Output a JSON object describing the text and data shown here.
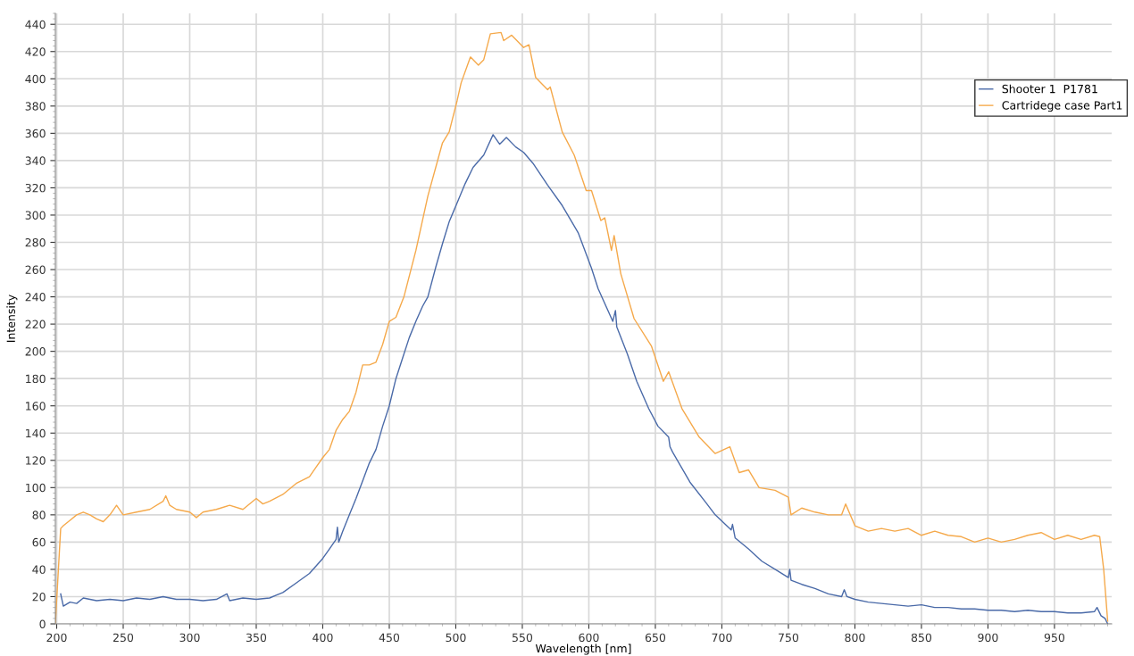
{
  "chart_data": {
    "type": "line",
    "xlabel": "Wavelength [nm]",
    "ylabel": "Intensity",
    "xlim": [
      199,
      993
    ],
    "ylim": [
      0,
      448
    ],
    "xticks": [
      200,
      250,
      300,
      350,
      400,
      450,
      500,
      550,
      600,
      650,
      700,
      750,
      800,
      850,
      900,
      950
    ],
    "yticks": [
      0,
      20,
      40,
      60,
      80,
      100,
      120,
      140,
      160,
      180,
      200,
      220,
      240,
      260,
      280,
      300,
      320,
      340,
      360,
      380,
      400,
      420,
      440
    ],
    "grid": true,
    "legend": "top right",
    "marker": "none",
    "line_style": "solid",
    "series": [
      {
        "name": "Shooter 1  P1781",
        "color": "#4a6aa8",
        "x": [
          203,
          205,
          210,
          215,
          220,
          230,
          240,
          250,
          260,
          270,
          280,
          290,
          300,
          310,
          320,
          328,
          330,
          340,
          350,
          360,
          365,
          370,
          380,
          390,
          400,
          405,
          410,
          411,
          412,
          415,
          420,
          425,
          430,
          435,
          440,
          445,
          450,
          455,
          460,
          465,
          470,
          475,
          479,
          485,
          490,
          495,
          501,
          507,
          513,
          521,
          528,
          533,
          538,
          545,
          551,
          558,
          569,
          580,
          592,
          602,
          607,
          618,
          620,
          621,
          629,
          636,
          645,
          652,
          660,
          661,
          663,
          676,
          688,
          695,
          707,
          708,
          710,
          720,
          730,
          740,
          750,
          751,
          752,
          760,
          770,
          780,
          790,
          792,
          794,
          800,
          810,
          820,
          830,
          840,
          850,
          860,
          870,
          880,
          890,
          900,
          910,
          920,
          930,
          940,
          950,
          960,
          970,
          980,
          982,
          985,
          988,
          990
        ],
        "values": [
          22,
          13,
          16,
          15,
          19,
          17,
          18,
          17,
          19,
          18,
          20,
          18,
          18,
          17,
          18,
          22,
          17,
          19,
          18,
          19,
          21,
          23,
          30,
          37,
          48,
          55,
          62,
          71,
          60,
          68,
          80,
          92,
          105,
          118,
          128,
          145,
          160,
          180,
          195,
          210,
          222,
          233,
          240,
          262,
          279,
          295,
          309,
          323,
          335,
          344,
          359,
          352,
          357,
          350,
          346,
          338,
          322,
          307,
          287,
          261,
          246,
          222,
          230,
          218,
          198,
          178,
          158,
          145,
          137,
          130,
          126,
          104,
          89,
          80,
          69,
          73,
          63,
          55,
          46,
          40,
          34,
          40,
          32,
          29,
          26,
          22,
          20,
          25,
          20,
          18,
          16,
          15,
          14,
          13,
          14,
          12,
          12,
          11,
          11,
          10,
          10,
          9,
          10,
          9,
          9,
          8,
          8,
          9,
          12,
          6,
          4,
          0
        ]
      },
      {
        "name": "Cartridege case Part1",
        "color": "#f5a94b",
        "x": [
          199,
          203,
          205,
          210,
          215,
          220,
          225,
          230,
          235,
          240,
          245,
          250,
          260,
          270,
          280,
          282,
          285,
          290,
          300,
          305,
          310,
          320,
          330,
          340,
          350,
          355,
          360,
          370,
          380,
          390,
          395,
          400,
          405,
          410,
          415,
          420,
          425,
          430,
          435,
          440,
          445,
          450,
          455,
          461,
          470,
          479,
          490,
          495,
          501,
          504,
          511,
          517,
          521,
          526,
          534,
          536,
          542,
          551,
          555,
          560,
          569,
          571,
          580,
          589,
          598,
          602,
          609,
          612,
          617,
          619,
          624,
          634,
          647,
          656,
          660,
          670,
          683,
          695,
          706,
          713,
          720,
          728,
          740,
          750,
          752,
          760,
          770,
          780,
          790,
          793,
          800,
          810,
          820,
          830,
          840,
          850,
          860,
          870,
          880,
          890,
          900,
          910,
          920,
          930,
          940,
          950,
          960,
          970,
          980,
          984,
          987,
          990
        ],
        "values": [
          0,
          70,
          72,
          76,
          80,
          82,
          80,
          77,
          75,
          80,
          87,
          80,
          82,
          84,
          90,
          94,
          87,
          84,
          82,
          78,
          82,
          84,
          87,
          84,
          92,
          88,
          90,
          95,
          103,
          108,
          115,
          122,
          128,
          142,
          150,
          156,
          170,
          190,
          190,
          192,
          205,
          222,
          225,
          240,
          274,
          314,
          353,
          361,
          384,
          397,
          416,
          410,
          414,
          433,
          434,
          428,
          432,
          423,
          425,
          401,
          392,
          394,
          361,
          344,
          318,
          318,
          296,
          298,
          274,
          285,
          257,
          224,
          204,
          178,
          185,
          158,
          137,
          125,
          130,
          111,
          113,
          100,
          98,
          93,
          80,
          85,
          82,
          80,
          80,
          88,
          72,
          68,
          70,
          68,
          70,
          65,
          68,
          65,
          64,
          60,
          63,
          60,
          62,
          65,
          67,
          62,
          65,
          62,
          65,
          64,
          40,
          2
        ]
      }
    ]
  }
}
